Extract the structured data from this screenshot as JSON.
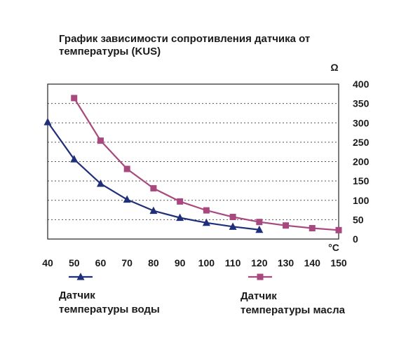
{
  "chart_data": {
    "type": "line",
    "title": [
      "График зависимости сопротивления датчика от",
      "температуры (KUS)"
    ],
    "xlabel": "°C",
    "ylabel": "Ω",
    "xlim": [
      40,
      150
    ],
    "ylim": [
      0,
      400
    ],
    "x_ticks": [
      40,
      50,
      60,
      70,
      80,
      90,
      100,
      110,
      120,
      130,
      140,
      150
    ],
    "y_ticks": [
      0,
      50,
      100,
      150,
      200,
      250,
      300,
      350,
      400
    ],
    "y_axis_side": "right",
    "grid": "horizontal-dashed",
    "series": [
      {
        "name": [
          "Датчик",
          "температуры воды"
        ],
        "marker": "triangle",
        "color": "#1f2f7a",
        "x": [
          40,
          50,
          60,
          70,
          80,
          90,
          100,
          110,
          120
        ],
        "y": [
          302,
          206,
          143,
          102,
          73,
          55,
          42,
          32,
          24
        ]
      },
      {
        "name": [
          "Датчик",
          "температуры масла"
        ],
        "marker": "square",
        "color": "#a8487e",
        "x": [
          50,
          60,
          70,
          80,
          90,
          100,
          110,
          120,
          130,
          140,
          150
        ],
        "y": [
          364,
          254,
          181,
          131,
          97,
          74,
          57,
          44,
          35,
          28,
          23
        ]
      }
    ]
  }
}
